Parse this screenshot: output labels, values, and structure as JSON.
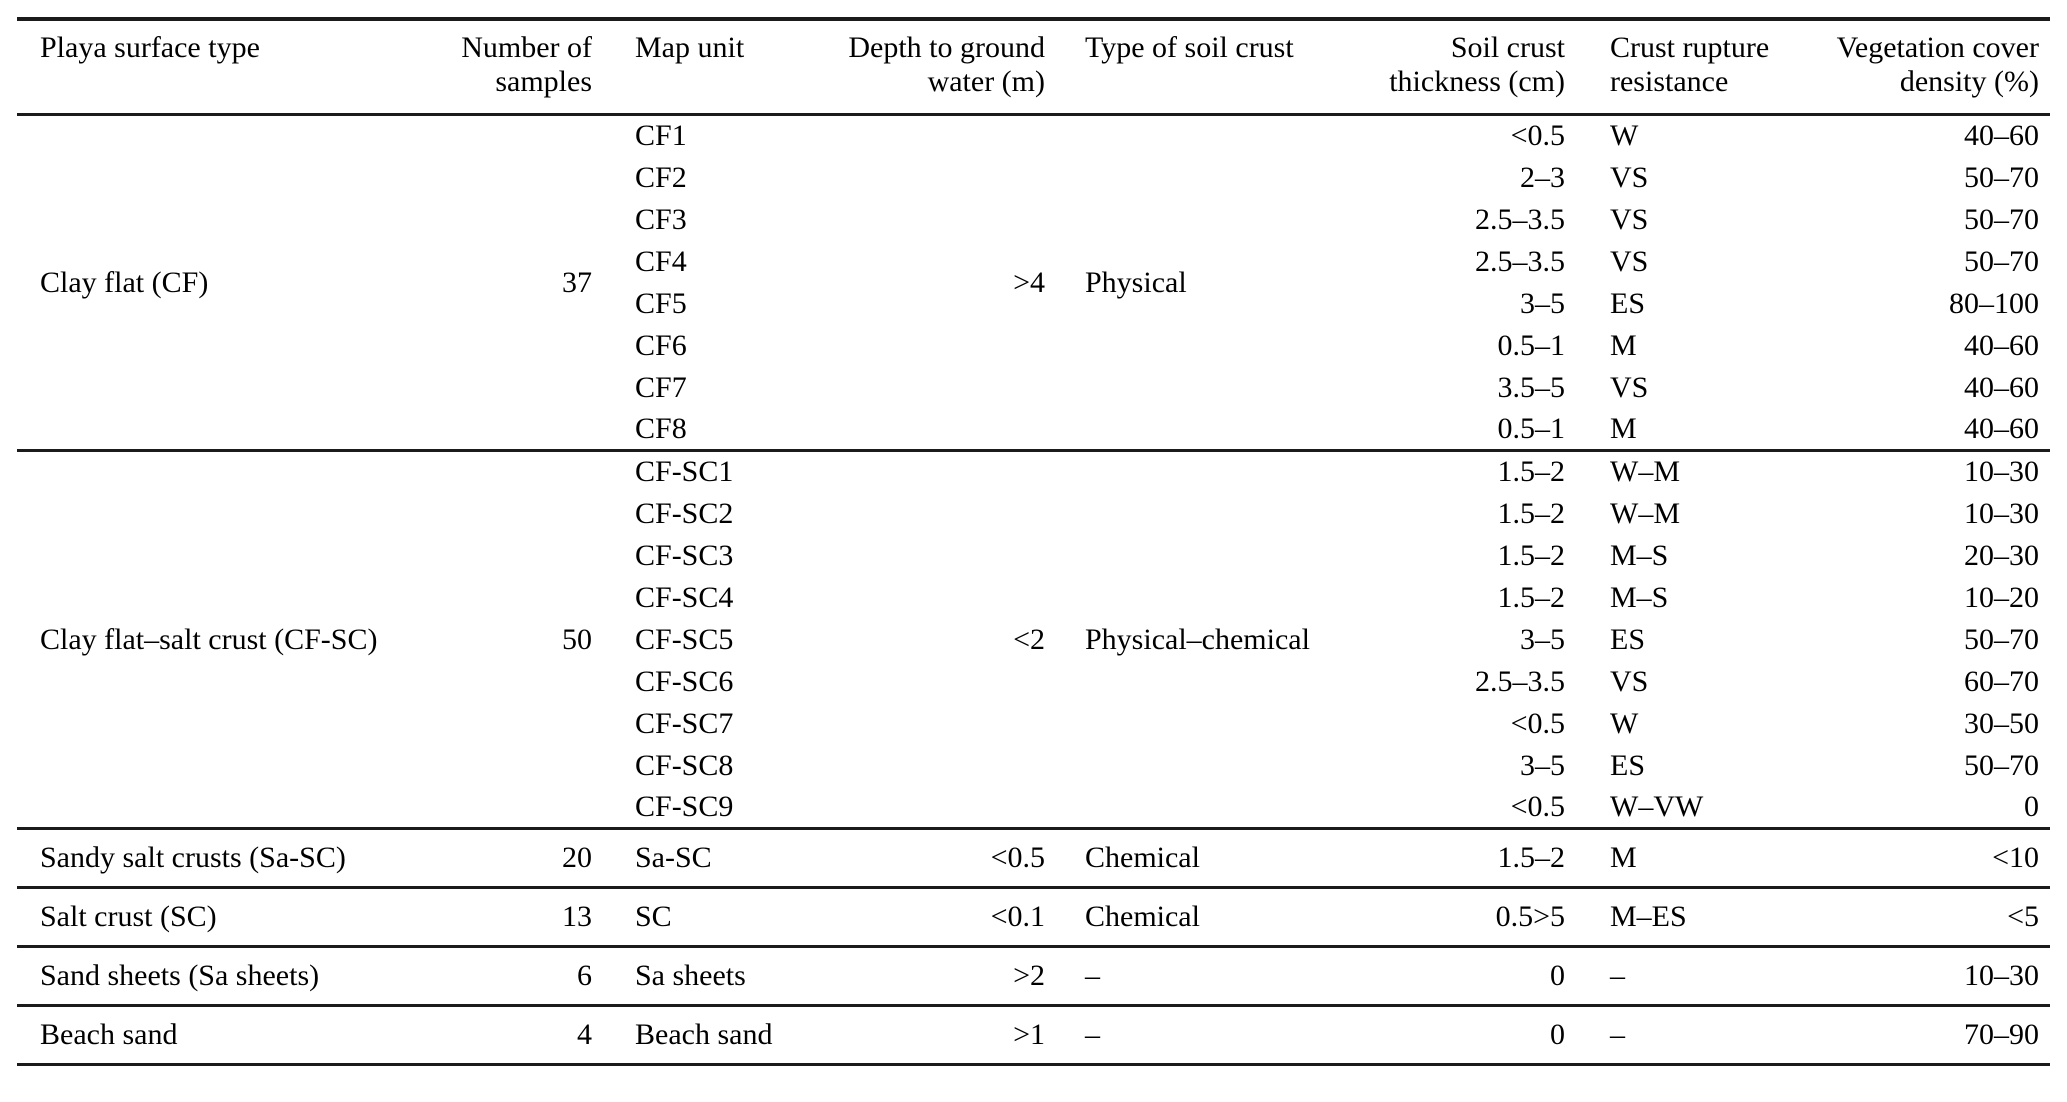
{
  "page": {
    "background_color": "#ffffff",
    "text_color": "#000000",
    "rule_color": "#1b1b1b"
  },
  "table": {
    "header": {
      "columns": [
        {
          "line1": "Playa surface type",
          "line2": ""
        },
        {
          "line1": "Number of",
          "line2": "samples"
        },
        {
          "line1": "Map unit",
          "line2": ""
        },
        {
          "line1": "Depth to ground",
          "line2": "water (m)"
        },
        {
          "line1": "Type of soil crust",
          "line2": ""
        },
        {
          "line1": "Soil crust",
          "line2": "thickness (cm)"
        },
        {
          "line1": "Crust rupture",
          "line2": "resistance"
        },
        {
          "line1": "Vegetation cover",
          "line2": "density (%)"
        }
      ]
    },
    "groups": [
      {
        "surface_type": "Clay flat (CF)",
        "number_of_samples": "37",
        "depth_to_ground_water_m": ">4",
        "type_of_soil_crust": "Physical",
        "rows": [
          {
            "map_unit": "CF1",
            "soil_crust_thickness_cm": "<0.5",
            "crust_rupture_resistance": "W",
            "vegetation_cover_density_pct": "40–60"
          },
          {
            "map_unit": "CF2",
            "soil_crust_thickness_cm": "2–3",
            "crust_rupture_resistance": "VS",
            "vegetation_cover_density_pct": "50–70"
          },
          {
            "map_unit": "CF3",
            "soil_crust_thickness_cm": "2.5–3.5",
            "crust_rupture_resistance": "VS",
            "vegetation_cover_density_pct": "50–70"
          },
          {
            "map_unit": "CF4",
            "soil_crust_thickness_cm": "2.5–3.5",
            "crust_rupture_resistance": "VS",
            "vegetation_cover_density_pct": "50–70"
          },
          {
            "map_unit": "CF5",
            "soil_crust_thickness_cm": "3–5",
            "crust_rupture_resistance": "ES",
            "vegetation_cover_density_pct": "80–100"
          },
          {
            "map_unit": "CF6",
            "soil_crust_thickness_cm": "0.5–1",
            "crust_rupture_resistance": "M",
            "vegetation_cover_density_pct": "40–60"
          },
          {
            "map_unit": "CF7",
            "soil_crust_thickness_cm": "3.5–5",
            "crust_rupture_resistance": "VS",
            "vegetation_cover_density_pct": "40–60"
          },
          {
            "map_unit": "CF8",
            "soil_crust_thickness_cm": "0.5–1",
            "crust_rupture_resistance": "M",
            "vegetation_cover_density_pct": "40–60"
          }
        ]
      },
      {
        "surface_type": "Clay flat–salt crust (CF-SC)",
        "number_of_samples": "50",
        "depth_to_ground_water_m": "<2",
        "type_of_soil_crust": "Physical–chemical",
        "rows": [
          {
            "map_unit": "CF-SC1",
            "soil_crust_thickness_cm": "1.5–2",
            "crust_rupture_resistance": "W–M",
            "vegetation_cover_density_pct": "10–30"
          },
          {
            "map_unit": "CF-SC2",
            "soil_crust_thickness_cm": "1.5–2",
            "crust_rupture_resistance": "W–M",
            "vegetation_cover_density_pct": "10–30"
          },
          {
            "map_unit": "CF-SC3",
            "soil_crust_thickness_cm": "1.5–2",
            "crust_rupture_resistance": "M–S",
            "vegetation_cover_density_pct": "20–30"
          },
          {
            "map_unit": "CF-SC4",
            "soil_crust_thickness_cm": "1.5–2",
            "crust_rupture_resistance": "M–S",
            "vegetation_cover_density_pct": "10–20"
          },
          {
            "map_unit": "CF-SC5",
            "soil_crust_thickness_cm": "3–5",
            "crust_rupture_resistance": "ES",
            "vegetation_cover_density_pct": "50–70"
          },
          {
            "map_unit": "CF-SC6",
            "soil_crust_thickness_cm": "2.5–3.5",
            "crust_rupture_resistance": "VS",
            "vegetation_cover_density_pct": "60–70"
          },
          {
            "map_unit": "CF-SC7",
            "soil_crust_thickness_cm": "<0.5",
            "crust_rupture_resistance": "W",
            "vegetation_cover_density_pct": "30–50"
          },
          {
            "map_unit": "CF-SC8",
            "soil_crust_thickness_cm": "3–5",
            "crust_rupture_resistance": "ES",
            "vegetation_cover_density_pct": "50–70"
          },
          {
            "map_unit": "CF-SC9",
            "soil_crust_thickness_cm": "<0.5",
            "crust_rupture_resistance": "W–VW",
            "vegetation_cover_density_pct": "0"
          }
        ]
      }
    ],
    "single_rows": [
      {
        "surface_type": "Sandy salt crusts (Sa-SC)",
        "number_of_samples": "20",
        "map_unit": "Sa-SC",
        "depth_to_ground_water_m": "<0.5",
        "type_of_soil_crust": "Chemical",
        "soil_crust_thickness_cm": "1.5–2",
        "crust_rupture_resistance": "M",
        "vegetation_cover_density_pct": "<10"
      },
      {
        "surface_type": "Salt crust (SC)",
        "number_of_samples": "13",
        "map_unit": "SC",
        "depth_to_ground_water_m": "<0.1",
        "type_of_soil_crust": "Chemical",
        "soil_crust_thickness_cm": "0.5>5",
        "crust_rupture_resistance": "M–ES",
        "vegetation_cover_density_pct": "<5"
      },
      {
        "surface_type": "Sand sheets (Sa sheets)",
        "number_of_samples": "6",
        "map_unit": "Sa sheets",
        "depth_to_ground_water_m": ">2",
        "type_of_soil_crust": "–",
        "soil_crust_thickness_cm": "0",
        "crust_rupture_resistance": "–",
        "vegetation_cover_density_pct": "10–30"
      },
      {
        "surface_type": "Beach sand",
        "number_of_samples": "4",
        "map_unit": "Beach sand",
        "depth_to_ground_water_m": ">1",
        "type_of_soil_crust": "–",
        "soil_crust_thickness_cm": "0",
        "crust_rupture_resistance": "–",
        "vegetation_cover_density_pct": "70–90"
      }
    ]
  }
}
